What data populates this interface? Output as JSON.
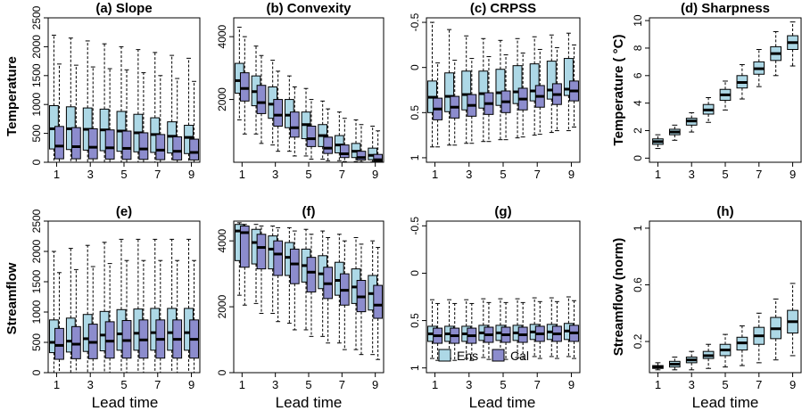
{
  "figure": {
    "row_labels": [
      "Temperature",
      "Streamflow"
    ],
    "xlabel": "Lead time",
    "legend": {
      "ens_label": "Ens",
      "cal_label": "Cal",
      "ens_color": "#add8e6",
      "cal_color": "#8c8ccd",
      "placement": "bottom-left of panel (g)"
    }
  },
  "chart_data": [
    {
      "id": "a",
      "title": "(a)  Slope",
      "type": "box",
      "ylabel": "Temperature",
      "ylim": [
        2500,
        0
      ],
      "yticks": [
        0,
        500,
        1000,
        1500,
        2000,
        2500
      ],
      "xticks": [
        1,
        3,
        5,
        7,
        9
      ],
      "series": [
        {
          "name": "Ens",
          "median": [
            580,
            580,
            570,
            560,
            540,
            510,
            480,
            450,
            430
          ],
          "q1": [
            230,
            220,
            210,
            200,
            190,
            180,
            170,
            160,
            150
          ],
          "q3": [
            980,
            960,
            940,
            920,
            880,
            830,
            770,
            700,
            640
          ],
          "wlo": [
            0,
            0,
            0,
            0,
            0,
            0,
            0,
            0,
            0
          ],
          "whi": [
            2200,
            2150,
            2100,
            2050,
            2000,
            1950,
            1900,
            1850,
            1800
          ]
        },
        {
          "name": "Cal",
          "median": [
            280,
            270,
            260,
            250,
            240,
            230,
            210,
            190,
            170
          ],
          "q1": [
            60,
            60,
            60,
            55,
            50,
            50,
            45,
            40,
            40
          ],
          "q3": [
            620,
            600,
            580,
            560,
            540,
            510,
            480,
            440,
            400
          ],
          "wlo": [
            0,
            0,
            0,
            0,
            0,
            0,
            0,
            0,
            0
          ],
          "whi": [
            1700,
            1680,
            1650,
            1620,
            1600,
            1550,
            1500,
            1450,
            1400
          ]
        }
      ]
    },
    {
      "id": "b",
      "title": "(b)  Convexity",
      "type": "box",
      "ylabel": "",
      "ylim": [
        4600,
        0
      ],
      "yticks": [
        2000,
        4000
      ],
      "xticks": [
        1,
        3,
        5,
        7,
        9
      ],
      "series": [
        {
          "name": "Ens",
          "median": [
            2600,
            2250,
            1850,
            1500,
            1200,
            850,
            550,
            350,
            220
          ],
          "q1": [
            2200,
            1800,
            1400,
            1100,
            750,
            500,
            300,
            150,
            80
          ],
          "q3": [
            3150,
            2750,
            2400,
            2000,
            1600,
            1200,
            850,
            600,
            450
          ],
          "wlo": [
            1350,
            900,
            550,
            350,
            200,
            100,
            50,
            20,
            10
          ],
          "whi": [
            4300,
            3700,
            3250,
            2750,
            2350,
            1950,
            1600,
            1350,
            1150
          ]
        },
        {
          "name": "Cal",
          "median": [
            2350,
            1900,
            1500,
            1100,
            750,
            450,
            270,
            150,
            80
          ],
          "q1": [
            1950,
            1550,
            1150,
            800,
            500,
            280,
            150,
            70,
            30
          ],
          "q3": [
            2850,
            2450,
            2000,
            1600,
            1150,
            800,
            550,
            350,
            250
          ],
          "wlo": [
            900,
            600,
            350,
            200,
            100,
            50,
            20,
            10,
            5
          ],
          "whi": [
            4000,
            3400,
            2900,
            2400,
            2000,
            1700,
            1400,
            1200,
            1000
          ]
        }
      ]
    },
    {
      "id": "c",
      "title": "(c)  CRPSS",
      "type": "box",
      "ylabel": "",
      "ylim": [
        -0.55,
        1.05
      ],
      "yticks": [
        -0.5,
        0.0,
        0.5,
        1.0
      ],
      "xticks": [
        1,
        3,
        5,
        7,
        9
      ],
      "series": [
        {
          "name": "Ens",
          "median": [
            0.33,
            0.32,
            0.3,
            0.29,
            0.28,
            0.27,
            0.26,
            0.25,
            0.24
          ],
          "q1": [
            0.15,
            0.06,
            0.04,
            0.04,
            0.02,
            -0.02,
            -0.04,
            -0.07,
            -0.1
          ],
          "q3": [
            0.5,
            0.49,
            0.47,
            0.45,
            0.42,
            0.4,
            0.37,
            0.35,
            0.31
          ],
          "wlo": [
            -0.5,
            -0.42,
            -0.35,
            -0.32,
            -0.3,
            -0.32,
            -0.34,
            -0.36,
            -0.38
          ],
          "whi": [
            0.88,
            0.86,
            0.84,
            0.82,
            0.8,
            0.78,
            0.75,
            0.72,
            0.7
          ]
        },
        {
          "name": "Cal",
          "median": [
            0.46,
            0.44,
            0.42,
            0.4,
            0.38,
            0.35,
            0.32,
            0.3,
            0.26
          ],
          "q1": [
            0.34,
            0.32,
            0.3,
            0.28,
            0.26,
            0.23,
            0.2,
            0.18,
            0.15
          ],
          "q3": [
            0.58,
            0.56,
            0.54,
            0.52,
            0.5,
            0.47,
            0.44,
            0.41,
            0.37
          ],
          "wlo": [
            -0.05,
            -0.08,
            -0.1,
            -0.12,
            -0.14,
            -0.16,
            -0.2,
            -0.22,
            -0.25
          ],
          "whi": [
            0.88,
            0.86,
            0.84,
            0.82,
            0.8,
            0.77,
            0.74,
            0.7,
            0.66
          ]
        }
      ]
    },
    {
      "id": "d",
      "title": "(d)  Sharpness",
      "type": "box",
      "ylabel": "Temperature ( °C)",
      "ylim": [
        10.2,
        -0.3
      ],
      "yticks": [
        0,
        2,
        4,
        6,
        8,
        10
      ],
      "xticks": [
        1,
        3,
        5,
        7,
        9
      ],
      "series": [
        {
          "name": "Ens",
          "median": [
            1.2,
            1.9,
            2.7,
            3.5,
            4.6,
            5.5,
            6.5,
            7.6,
            8.4
          ],
          "q1": [
            1.0,
            1.7,
            2.4,
            3.2,
            4.2,
            5.1,
            6.1,
            7.1,
            7.9
          ],
          "q3": [
            1.4,
            2.1,
            2.9,
            3.9,
            5.0,
            6.0,
            7.0,
            8.1,
            8.9
          ],
          "wlo": [
            0.7,
            1.3,
            1.9,
            2.6,
            3.5,
            4.3,
            5.2,
            6.0,
            6.7
          ],
          "whi": [
            1.7,
            2.4,
            3.3,
            4.4,
            5.6,
            6.8,
            7.9,
            9.2,
            9.9
          ]
        }
      ]
    },
    {
      "id": "e",
      "title": "(e)",
      "type": "box",
      "ylabel": "Streamflow",
      "ylim": [
        2500,
        0
      ],
      "yticks": [
        0,
        500,
        1000,
        1500,
        2000,
        2500
      ],
      "xticks": [
        1,
        3,
        5,
        7,
        9
      ],
      "series": [
        {
          "name": "Ens",
          "median": [
            500,
            520,
            560,
            620,
            640,
            650,
            660,
            660,
            660
          ],
          "q1": [
            330,
            340,
            350,
            360,
            370,
            370,
            370,
            370,
            370
          ],
          "q3": [
            870,
            900,
            960,
            1010,
            1040,
            1050,
            1060,
            1060,
            1060
          ],
          "wlo": [
            0,
            0,
            0,
            0,
            0,
            0,
            0,
            0,
            0
          ],
          "whi": [
            2000,
            2050,
            2100,
            2150,
            2200,
            2200,
            2200,
            2200,
            2200
          ]
        },
        {
          "name": "Cal",
          "median": [
            450,
            470,
            500,
            520,
            530,
            540,
            550,
            550,
            550
          ],
          "q1": [
            220,
            230,
            230,
            240,
            240,
            240,
            240,
            240,
            240
          ],
          "q3": [
            730,
            760,
            800,
            840,
            860,
            870,
            870,
            870,
            870
          ],
          "wlo": [
            0,
            0,
            0,
            0,
            0,
            0,
            0,
            0,
            0
          ],
          "whi": [
            1650,
            1700,
            1750,
            1800,
            1850,
            1850,
            1850,
            1850,
            1850
          ]
        }
      ]
    },
    {
      "id": "f",
      "title": "(f)",
      "type": "box",
      "ylabel": "",
      "ylim": [
        4600,
        0
      ],
      "yticks": [
        0,
        2000,
        4000
      ],
      "xticks": [
        1,
        3,
        5,
        7,
        9
      ],
      "series": [
        {
          "name": "Ens",
          "median": [
            4300,
            3950,
            3750,
            3500,
            3250,
            3000,
            2800,
            2600,
            2400
          ],
          "q1": [
            3400,
            3300,
            3150,
            2950,
            2750,
            2550,
            2350,
            2100,
            1900
          ],
          "q3": [
            4500,
            4350,
            4150,
            3950,
            3750,
            3550,
            3350,
            3150,
            2950
          ],
          "wlo": [
            2350,
            2100,
            1800,
            1500,
            1300,
            1100,
            900,
            700,
            550
          ],
          "whi": [
            4550,
            4500,
            4450,
            4400,
            4350,
            4300,
            4200,
            4100,
            4000
          ]
        },
        {
          "name": "Cal",
          "median": [
            4250,
            3800,
            3600,
            3300,
            3050,
            2700,
            2500,
            2300,
            2050
          ],
          "q1": [
            3200,
            3150,
            2950,
            2700,
            2450,
            2250,
            2050,
            1850,
            1650
          ],
          "q3": [
            4450,
            4200,
            4000,
            3750,
            3500,
            3200,
            3000,
            2800,
            2650
          ],
          "wlo": [
            2050,
            1800,
            1550,
            1300,
            1100,
            900,
            700,
            550,
            400
          ],
          "whi": [
            4500,
            4450,
            4400,
            4300,
            4200,
            4100,
            4000,
            3900,
            3800
          ]
        }
      ]
    },
    {
      "id": "g",
      "title": "(g)",
      "type": "box",
      "ylabel": "",
      "ylim": [
        -0.55,
        1.05
      ],
      "yticks": [
        -0.5,
        0.0,
        0.5,
        1.0
      ],
      "xticks": [
        1,
        3,
        5,
        7,
        9
      ],
      "series": [
        {
          "name": "Ens",
          "median": [
            0.64,
            0.64,
            0.64,
            0.63,
            0.63,
            0.63,
            0.62,
            0.62,
            0.61
          ],
          "q1": [
            0.56,
            0.56,
            0.56,
            0.55,
            0.55,
            0.55,
            0.54,
            0.54,
            0.53
          ],
          "q3": [
            0.72,
            0.72,
            0.72,
            0.71,
            0.71,
            0.71,
            0.7,
            0.7,
            0.7
          ],
          "wlo": [
            0.28,
            0.28,
            0.28,
            0.27,
            0.27,
            0.27,
            0.26,
            0.26,
            0.25
          ],
          "whi": [
            0.9,
            0.9,
            0.9,
            0.89,
            0.89,
            0.89,
            0.88,
            0.88,
            0.88
          ]
        },
        {
          "name": "Cal",
          "median": [
            0.66,
            0.66,
            0.66,
            0.65,
            0.65,
            0.65,
            0.64,
            0.64,
            0.63
          ],
          "q1": [
            0.58,
            0.58,
            0.58,
            0.57,
            0.57,
            0.57,
            0.56,
            0.56,
            0.55
          ],
          "q3": [
            0.74,
            0.74,
            0.74,
            0.73,
            0.73,
            0.73,
            0.72,
            0.72,
            0.72
          ],
          "wlo": [
            0.32,
            0.32,
            0.32,
            0.31,
            0.31,
            0.31,
            0.3,
            0.3,
            0.29
          ],
          "whi": [
            0.92,
            0.92,
            0.92,
            0.91,
            0.91,
            0.91,
            0.9,
            0.9,
            0.9
          ]
        }
      ]
    },
    {
      "id": "h",
      "title": "(h)",
      "type": "box",
      "ylabel": "Streamflow  (norm)",
      "ylim": [
        1.05,
        -0.02
      ],
      "yticks": [
        0.2,
        0.6,
        1.0
      ],
      "xticks": [
        1,
        3,
        5,
        7,
        9
      ],
      "series": [
        {
          "name": "Ens",
          "median": [
            0.02,
            0.04,
            0.07,
            0.1,
            0.14,
            0.19,
            0.24,
            0.29,
            0.34
          ],
          "q1": [
            0.01,
            0.02,
            0.05,
            0.08,
            0.1,
            0.14,
            0.18,
            0.22,
            0.26
          ],
          "q3": [
            0.03,
            0.06,
            0.09,
            0.13,
            0.18,
            0.23,
            0.3,
            0.37,
            0.42
          ],
          "wlo": [
            0.0,
            0.0,
            0.0,
            0.01,
            0.02,
            0.03,
            0.05,
            0.07,
            0.1
          ],
          "whi": [
            0.05,
            0.09,
            0.13,
            0.18,
            0.25,
            0.31,
            0.4,
            0.5,
            0.61
          ]
        }
      ]
    }
  ]
}
